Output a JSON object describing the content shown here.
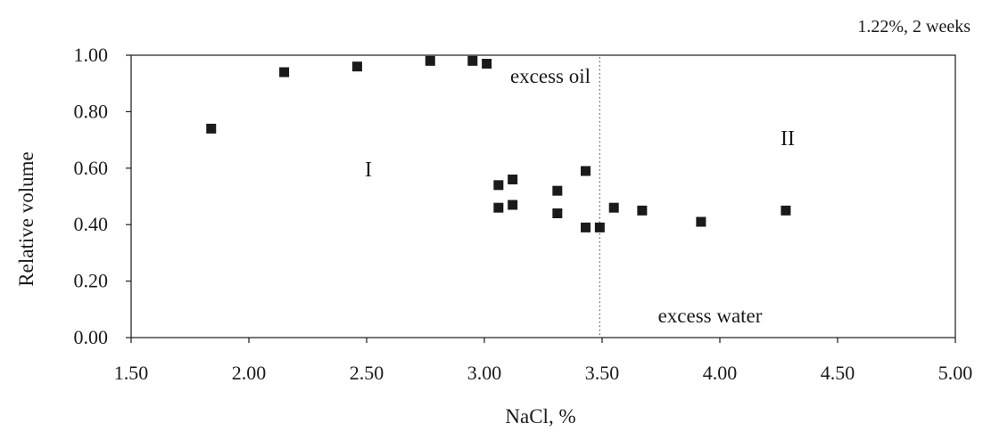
{
  "chart_data": {
    "type": "scatter",
    "title": "",
    "subtitle": "1.22%, 2 weeks",
    "xlabel": "NaCl, %",
    "ylabel": "Relative volume",
    "xlim": [
      1.5,
      5.0
    ],
    "ylim": [
      0.0,
      1.0
    ],
    "x_ticks": [
      "1.50",
      "2.00",
      "2.50",
      "3.00",
      "3.50",
      "4.00",
      "4.50",
      "5.00"
    ],
    "y_ticks": [
      "0.00",
      "0.20",
      "0.40",
      "0.60",
      "0.80",
      "1.00"
    ],
    "grid": false,
    "legend": "none",
    "marker": "square",
    "marker_color": "#1a1a1a",
    "points": [
      {
        "x": 1.84,
        "y": 0.74
      },
      {
        "x": 2.15,
        "y": 0.94
      },
      {
        "x": 2.46,
        "y": 0.96
      },
      {
        "x": 2.77,
        "y": 0.98
      },
      {
        "x": 2.95,
        "y": 0.98
      },
      {
        "x": 3.01,
        "y": 0.97
      },
      {
        "x": 3.06,
        "y": 0.54
      },
      {
        "x": 3.06,
        "y": 0.46
      },
      {
        "x": 3.12,
        "y": 0.56
      },
      {
        "x": 3.12,
        "y": 0.47
      },
      {
        "x": 3.31,
        "y": 0.52
      },
      {
        "x": 3.31,
        "y": 0.44
      },
      {
        "x": 3.43,
        "y": 0.59
      },
      {
        "x": 3.43,
        "y": 0.39
      },
      {
        "x": 3.49,
        "y": 0.39
      },
      {
        "x": 3.55,
        "y": 0.46
      },
      {
        "x": 3.67,
        "y": 0.45
      },
      {
        "x": 3.92,
        "y": 0.41
      },
      {
        "x": 4.28,
        "y": 0.45
      }
    ],
    "reference_line": {
      "x": 3.49,
      "style": "dotted"
    },
    "annotations": {
      "excess_oil": "excess oil",
      "excess_water": "excess water",
      "region_1": "I",
      "region_2": "II"
    }
  }
}
